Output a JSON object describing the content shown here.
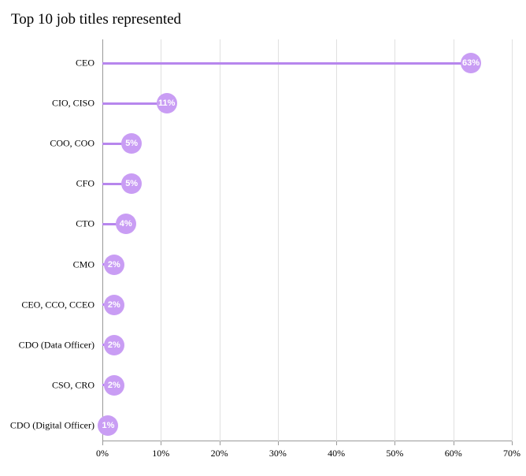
{
  "chart": {
    "type": "lollipop-horizontal",
    "title": "Top 10 job titles represented",
    "title_fontsize": 19,
    "title_color": "#000000",
    "background_color": "#ffffff",
    "bar_color": "#b786ed",
    "dot_fill": "#c99df4",
    "dot_text_color": "#ffffff",
    "gridline_color": "#e0e0e0",
    "axis_color": "#999999",
    "ylabel_fontsize": 12,
    "xlabel_fontsize": 12,
    "dot_label_fontsize": 11,
    "xmin": 0,
    "xmax": 70,
    "xtick_step": 10,
    "xticks": [
      0,
      10,
      20,
      30,
      40,
      50,
      60,
      70
    ],
    "xtick_labels": [
      "0%",
      "10%",
      "20%",
      "30%",
      "40%",
      "50%",
      "60%",
      "70%"
    ],
    "categories": [
      "CEO",
      "CIO, CISO",
      "COO, COO",
      "CFO",
      "CTO",
      "CMO",
      "CEO, CCO, CCEO",
      "CDO (Data Officer)",
      "CSO, CRO",
      "CDO (Digital Officer)"
    ],
    "values": [
      63,
      11,
      5,
      5,
      4,
      2,
      2,
      2,
      2,
      1
    ],
    "value_labels": [
      "63%",
      "11%",
      "5%",
      "5%",
      "4%",
      "2%",
      "2%",
      "2%",
      "2%",
      "1%"
    ]
  }
}
